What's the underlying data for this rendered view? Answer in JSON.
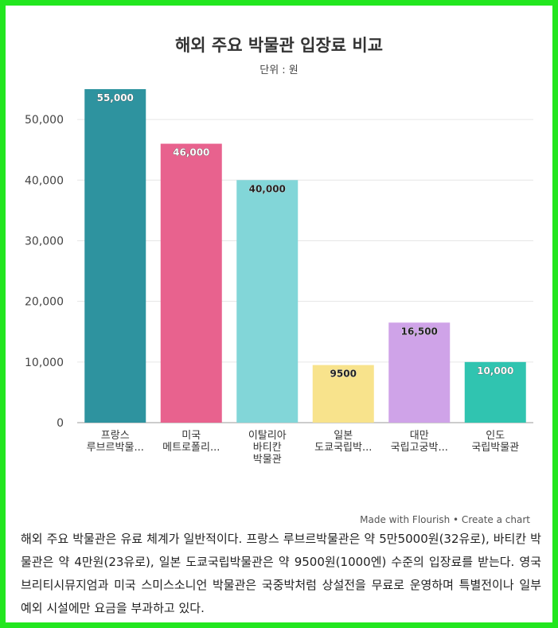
{
  "chart_data": {
    "type": "bar",
    "title": "해외 주요 박물관 입장료 비교",
    "subtitle": "단위 : 원",
    "categories": [
      [
        "프랑스",
        "루브르박물..."
      ],
      [
        "미국",
        "메트로폴리..."
      ],
      [
        "이탈리아",
        "바티칸",
        "박물관"
      ],
      [
        "일본",
        "도쿄국립박..."
      ],
      [
        "대만",
        "국립고궁박..."
      ],
      [
        "인도",
        "국립박물관"
      ]
    ],
    "values": [
      55000,
      46000,
      40000,
      9500,
      16500,
      10000
    ],
    "value_labels": [
      "55,000",
      "46,000",
      "40,000",
      "9500",
      "16,500",
      "10,000"
    ],
    "colors": [
      "#2e939f",
      "#e8628e",
      "#82d6d8",
      "#f8e38c",
      "#cfa3e8",
      "#30c4b0"
    ],
    "ylim": [
      0,
      55000
    ],
    "yticks": [
      0,
      10000,
      20000,
      30000,
      40000,
      50000
    ],
    "ytick_labels": [
      "0",
      "10,000",
      "20,000",
      "30,000",
      "40,000",
      "50,000"
    ],
    "grid": true,
    "xlabel": "",
    "ylabel": ""
  },
  "credit": "Made with Flourish • Create a chart",
  "caption": "해외 주요 박물관은 유료 체계가 일반적이다. 프랑스 루브르박물관은 약 5만5000원(32유로), 바티칸 박물관은 약 4만원(23유로), 일본 도쿄국립박물관은 약 9500원(1000엔) 수준의 입장료를 받는다. 영국 브리티시뮤지엄과 미국 스미스소니언 박물관은 국중박처럼 상설전을 무료로 운영하며 특별전이나 일부 예외 시설에만 요금을 부과하고 있다."
}
